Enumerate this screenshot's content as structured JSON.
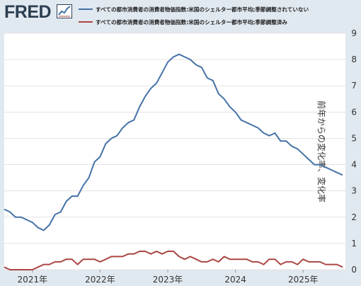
{
  "header": {
    "logo_text": "FRED",
    "logo_icon": "line-chart-icon"
  },
  "colors": {
    "background": "#e1e9f0",
    "plot_background": "#ffffff",
    "series_1": "#4572a7",
    "series_2": "#aa4643",
    "grid": "#e3e3e3",
    "logo": "#2c3e50"
  },
  "chart_data": {
    "type": "line",
    "title": "",
    "xlabel": "",
    "ylabel": "前年からの変化率、変化率",
    "ylim": [
      0,
      9
    ],
    "y_ticks": [
      "0",
      "1",
      "2",
      "3",
      "4",
      "5",
      "6",
      "7",
      "8",
      "9"
    ],
    "x_ticks": [
      "2021年",
      "2022年",
      "2023年",
      "2024",
      "2025年"
    ],
    "x_start": "2020-08",
    "x_end": "2025-08",
    "grid": true,
    "legend_position": "top",
    "series": [
      {
        "name": "すべての都市消費者の消費者物価指数:米国のシェルター都市平均;季節調整されていない",
        "color": "#4572a7",
        "x": [
          "2020-08",
          "2020-09",
          "2020-10",
          "2020-11",
          "2020-12",
          "2021-01",
          "2021-02",
          "2021-03",
          "2021-04",
          "2021-05",
          "2021-06",
          "2021-07",
          "2021-08",
          "2021-09",
          "2021-10",
          "2021-11",
          "2021-12",
          "2022-01",
          "2022-02",
          "2022-03",
          "2022-04",
          "2022-05",
          "2022-06",
          "2022-07",
          "2022-08",
          "2022-09",
          "2022-10",
          "2022-11",
          "2022-12",
          "2023-01",
          "2023-02",
          "2023-03",
          "2023-04",
          "2023-05",
          "2023-06",
          "2023-07",
          "2023-08",
          "2023-09",
          "2023-10",
          "2023-11",
          "2023-12",
          "2024-01",
          "2024-02",
          "2024-03",
          "2024-04",
          "2024-05",
          "2024-06",
          "2024-07",
          "2024-08",
          "2024-09",
          "2024-10",
          "2024-11",
          "2024-12",
          "2025-01",
          "2025-02",
          "2025-03",
          "2025-04",
          "2025-05",
          "2025-06",
          "2025-07",
          "2025-08"
        ],
        "values": [
          2.3,
          2.2,
          2.0,
          2.0,
          1.9,
          1.8,
          1.6,
          1.5,
          1.7,
          2.1,
          2.2,
          2.6,
          2.8,
          2.8,
          3.2,
          3.5,
          4.1,
          4.3,
          4.8,
          5.0,
          5.1,
          5.4,
          5.6,
          5.7,
          6.2,
          6.6,
          6.9,
          7.1,
          7.5,
          7.9,
          8.1,
          8.2,
          8.1,
          8.0,
          7.8,
          7.7,
          7.3,
          7.2,
          6.7,
          6.5,
          6.2,
          6.0,
          5.7,
          5.6,
          5.5,
          5.4,
          5.2,
          5.1,
          5.2,
          4.9,
          4.9,
          4.7,
          4.6,
          4.4,
          4.2,
          4.0,
          4.0,
          3.9,
          3.8,
          3.7,
          3.6
        ]
      },
      {
        "name": "すべての都市消費者の消費者物価指数:米国のシェルター都市平均;季節調整済み",
        "color": "#aa4643",
        "x": [
          "2020-08",
          "2020-09",
          "2020-10",
          "2020-11",
          "2020-12",
          "2021-01",
          "2021-02",
          "2021-03",
          "2021-04",
          "2021-05",
          "2021-06",
          "2021-07",
          "2021-08",
          "2021-09",
          "2021-10",
          "2021-11",
          "2021-12",
          "2022-01",
          "2022-02",
          "2022-03",
          "2022-04",
          "2022-05",
          "2022-06",
          "2022-07",
          "2022-08",
          "2022-09",
          "2022-10",
          "2022-11",
          "2022-12",
          "2023-01",
          "2023-02",
          "2023-03",
          "2023-04",
          "2023-05",
          "2023-06",
          "2023-07",
          "2023-08",
          "2023-09",
          "2023-10",
          "2023-11",
          "2023-12",
          "2024-01",
          "2024-02",
          "2024-03",
          "2024-04",
          "2024-05",
          "2024-06",
          "2024-07",
          "2024-08",
          "2024-09",
          "2024-10",
          "2024-11",
          "2024-12",
          "2025-01",
          "2025-02",
          "2025-03",
          "2025-04",
          "2025-05",
          "2025-06",
          "2025-07",
          "2025-08"
        ],
        "values": [
          0.1,
          0.0,
          0.0,
          0.0,
          0.0,
          0.0,
          0.1,
          0.2,
          0.2,
          0.3,
          0.3,
          0.4,
          0.4,
          0.2,
          0.4,
          0.4,
          0.4,
          0.3,
          0.4,
          0.5,
          0.5,
          0.5,
          0.6,
          0.6,
          0.7,
          0.7,
          0.6,
          0.7,
          0.6,
          0.7,
          0.7,
          0.5,
          0.4,
          0.5,
          0.4,
          0.3,
          0.3,
          0.4,
          0.3,
          0.5,
          0.4,
          0.4,
          0.4,
          0.4,
          0.3,
          0.3,
          0.2,
          0.4,
          0.4,
          0.2,
          0.3,
          0.3,
          0.2,
          0.4,
          0.3,
          0.3,
          0.3,
          0.2,
          0.2,
          0.2,
          0.1
        ]
      }
    ]
  }
}
